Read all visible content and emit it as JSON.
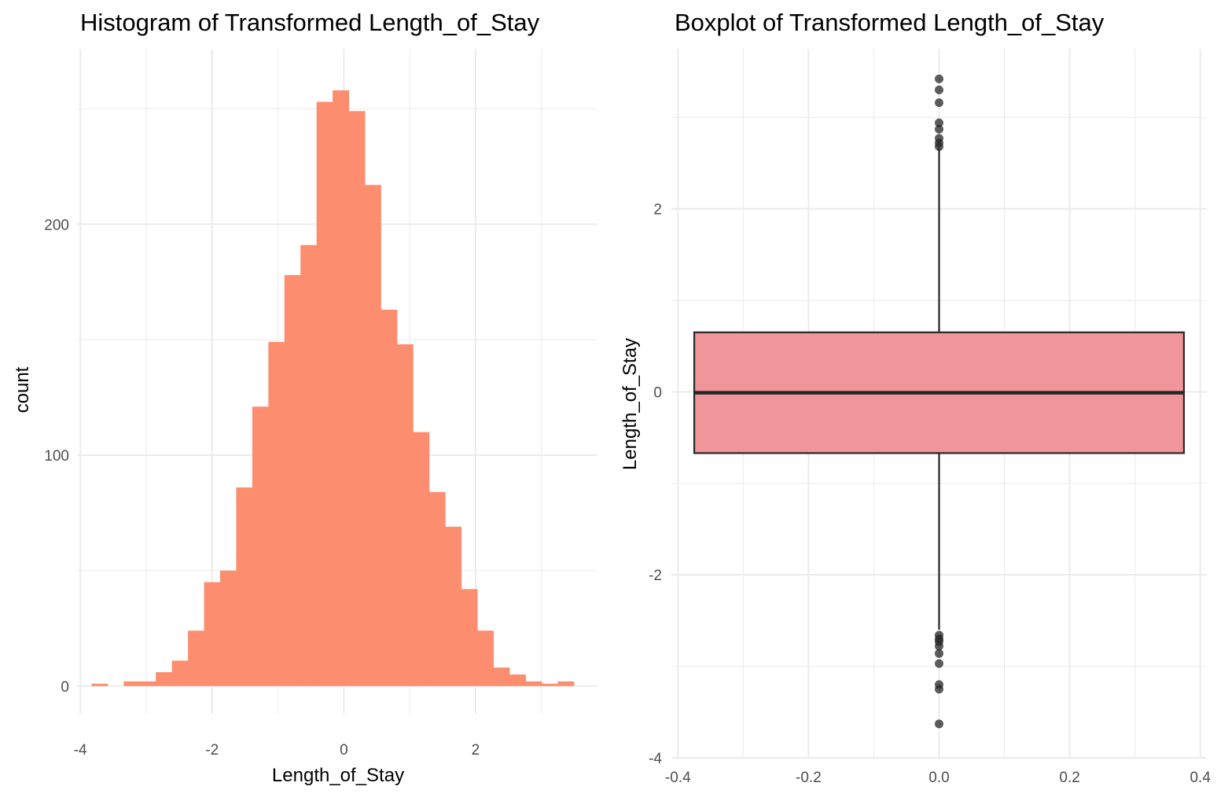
{
  "chart_data": [
    {
      "type": "bar",
      "title": "Histogram of Transformed Length_of_Stay",
      "xlabel": "Length_of_Stay",
      "ylabel": "count",
      "xlim": [
        -4.05,
        3.85
      ],
      "ylim": [
        -12,
        276
      ],
      "x_ticks": [
        -4,
        -2,
        0,
        2
      ],
      "x_tick_labels": [
        "-4",
        "-2",
        "0",
        "2"
      ],
      "y_ticks": [
        0,
        100,
        200
      ],
      "y_tick_labels": [
        "0",
        "100",
        "200"
      ],
      "grid": true,
      "bin_width": 0.244,
      "bins": [
        {
          "x0": -3.83,
          "count": 1
        },
        {
          "x0": -3.586,
          "count": 0
        },
        {
          "x0": -3.342,
          "count": 2
        },
        {
          "x0": -3.098,
          "count": 2
        },
        {
          "x0": -2.854,
          "count": 6
        },
        {
          "x0": -2.61,
          "count": 11
        },
        {
          "x0": -2.366,
          "count": 24
        },
        {
          "x0": -2.122,
          "count": 45
        },
        {
          "x0": -1.878,
          "count": 50
        },
        {
          "x0": -1.634,
          "count": 86
        },
        {
          "x0": -1.39,
          "count": 121
        },
        {
          "x0": -1.146,
          "count": 149
        },
        {
          "x0": -0.902,
          "count": 178
        },
        {
          "x0": -0.658,
          "count": 191
        },
        {
          "x0": -0.414,
          "count": 253
        },
        {
          "x0": -0.17,
          "count": 258
        },
        {
          "x0": 0.074,
          "count": 249
        },
        {
          "x0": 0.318,
          "count": 217
        },
        {
          "x0": 0.562,
          "count": 163
        },
        {
          "x0": 0.806,
          "count": 148
        },
        {
          "x0": 1.05,
          "count": 110
        },
        {
          "x0": 1.294,
          "count": 84
        },
        {
          "x0": 1.538,
          "count": 69
        },
        {
          "x0": 1.782,
          "count": 42
        },
        {
          "x0": 2.026,
          "count": 24
        },
        {
          "x0": 2.27,
          "count": 8
        },
        {
          "x0": 2.514,
          "count": 5
        },
        {
          "x0": 2.758,
          "count": 2
        },
        {
          "x0": 3.002,
          "count": 1
        },
        {
          "x0": 3.246,
          "count": 2
        }
      ],
      "fill_color": "#fc8d6e"
    },
    {
      "type": "box",
      "title": "Boxplot of Transformed Length_of_Stay",
      "xlabel": "",
      "ylabel": "Length_of_Stay",
      "xlim": [
        -0.41,
        0.41
      ],
      "ylim": [
        -4,
        3.75
      ],
      "x_ticks": [
        -0.4,
        -0.2,
        0.0,
        0.2,
        0.4
      ],
      "x_tick_labels": [
        "-0.4",
        "-0.2",
        "0.0",
        "0.2",
        "0.4"
      ],
      "y_ticks": [
        -4,
        -2,
        0,
        2
      ],
      "y_tick_labels": [
        "-4",
        "-2",
        "0",
        "2"
      ],
      "grid": true,
      "box": {
        "x_center": 0,
        "half_width": 0.375,
        "q1": -0.67,
        "median": -0.01,
        "q3": 0.65,
        "whisker_low": -2.6,
        "whisker_high": 2.67
      },
      "outliers": [
        3.42,
        3.3,
        3.16,
        2.94,
        2.87,
        2.77,
        2.72,
        2.68,
        -2.66,
        -2.7,
        -2.73,
        -2.78,
        -2.86,
        -2.97,
        -3.2,
        -3.25,
        -3.63
      ],
      "fill_color": "#f0959a",
      "line_color": "#262626"
    }
  ]
}
